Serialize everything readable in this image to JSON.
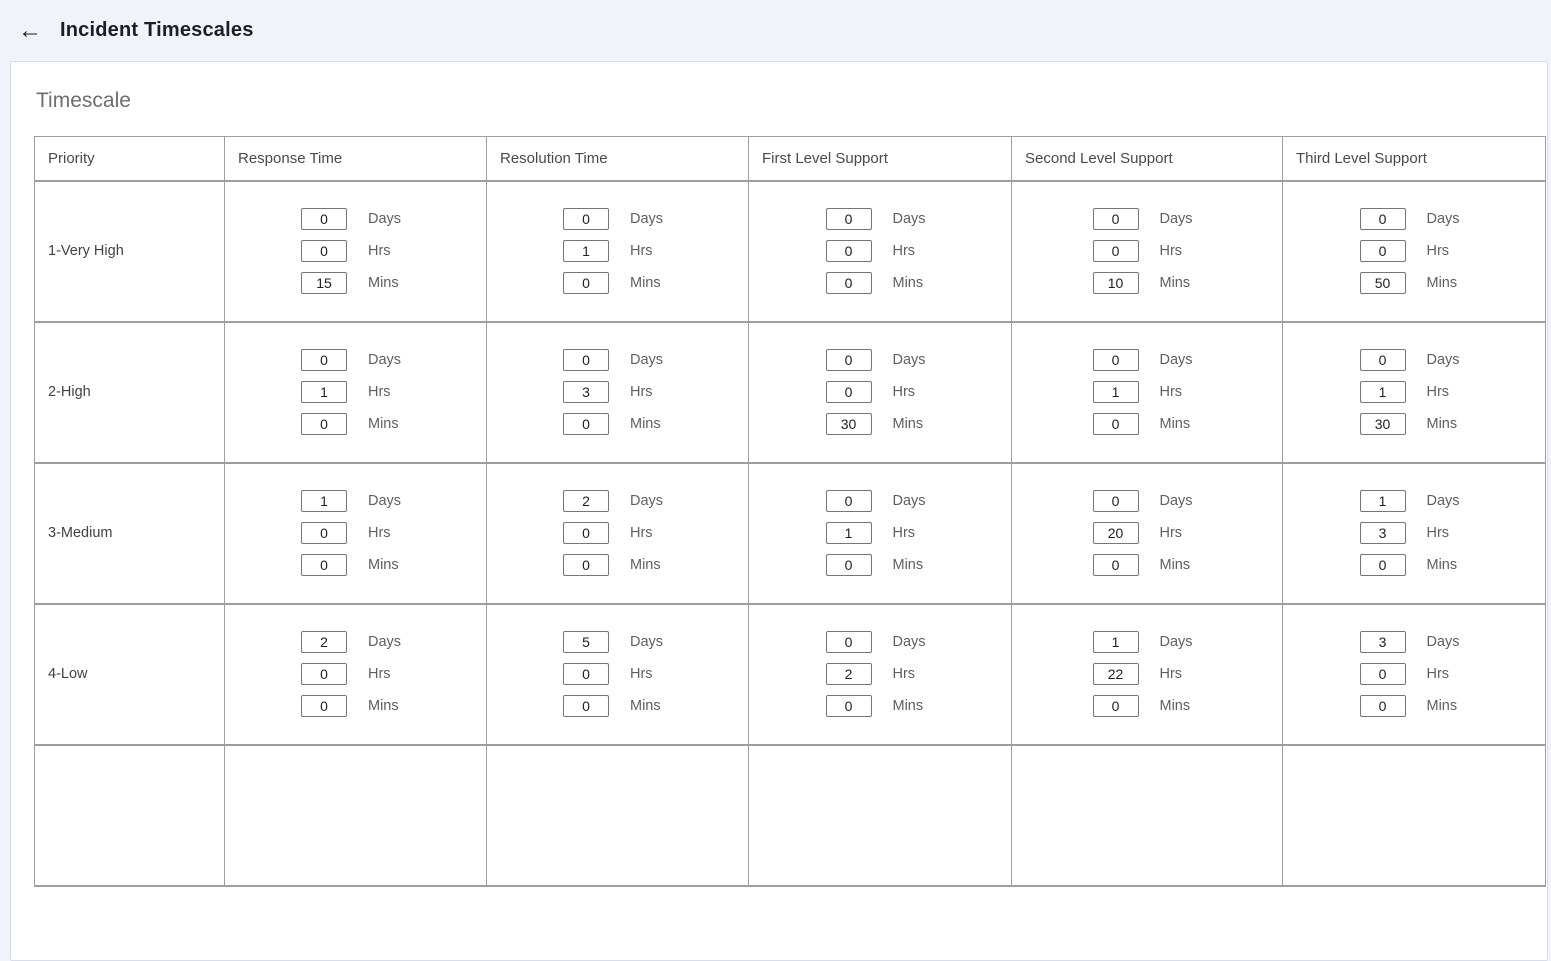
{
  "header": {
    "back_icon": "←",
    "title": "Incident Timescales"
  },
  "section": {
    "title": "Timescale"
  },
  "table": {
    "columns": [
      "Priority",
      "Response Time",
      "Resolution Time",
      "First Level Support",
      "Second Level Support",
      "Third Level Support"
    ],
    "unit_labels": [
      "Days",
      "Hrs",
      "Mins"
    ],
    "rows": [
      {
        "priority": "1-Very High",
        "times": {
          "response": {
            "days": "0",
            "hrs": "0",
            "mins": "15"
          },
          "resolution": {
            "days": "0",
            "hrs": "1",
            "mins": "0"
          },
          "first_level": {
            "days": "0",
            "hrs": "0",
            "mins": "0"
          },
          "second_level": {
            "days": "0",
            "hrs": "0",
            "mins": "10"
          },
          "third_level": {
            "days": "0",
            "hrs": "0",
            "mins": "50"
          }
        }
      },
      {
        "priority": "2-High",
        "times": {
          "response": {
            "days": "0",
            "hrs": "1",
            "mins": "0"
          },
          "resolution": {
            "days": "0",
            "hrs": "3",
            "mins": "0"
          },
          "first_level": {
            "days": "0",
            "hrs": "0",
            "mins": "30"
          },
          "second_level": {
            "days": "0",
            "hrs": "1",
            "mins": "0"
          },
          "third_level": {
            "days": "0",
            "hrs": "1",
            "mins": "30"
          }
        }
      },
      {
        "priority": "3-Medium",
        "times": {
          "response": {
            "days": "1",
            "hrs": "0",
            "mins": "0"
          },
          "resolution": {
            "days": "2",
            "hrs": "0",
            "mins": "0"
          },
          "first_level": {
            "days": "0",
            "hrs": "1",
            "mins": "0"
          },
          "second_level": {
            "days": "0",
            "hrs": "20",
            "mins": "0"
          },
          "third_level": {
            "days": "1",
            "hrs": "3",
            "mins": "0"
          }
        }
      },
      {
        "priority": "4-Low",
        "times": {
          "response": {
            "days": "2",
            "hrs": "0",
            "mins": "0"
          },
          "resolution": {
            "days": "5",
            "hrs": "0",
            "mins": "0"
          },
          "first_level": {
            "days": "0",
            "hrs": "2",
            "mins": "0"
          },
          "second_level": {
            "days": "1",
            "hrs": "22",
            "mins": "0"
          },
          "third_level": {
            "days": "3",
            "hrs": "0",
            "mins": "0"
          }
        }
      }
    ]
  },
  "colors": {
    "page_background": "#f0f3fa",
    "card_border": "#d7ddea",
    "table_border": "#9e9e9e",
    "title_text": "#1e1e1e",
    "section_title_text": "#6e6e6e",
    "unit_label_text": "#5f5f5f"
  }
}
